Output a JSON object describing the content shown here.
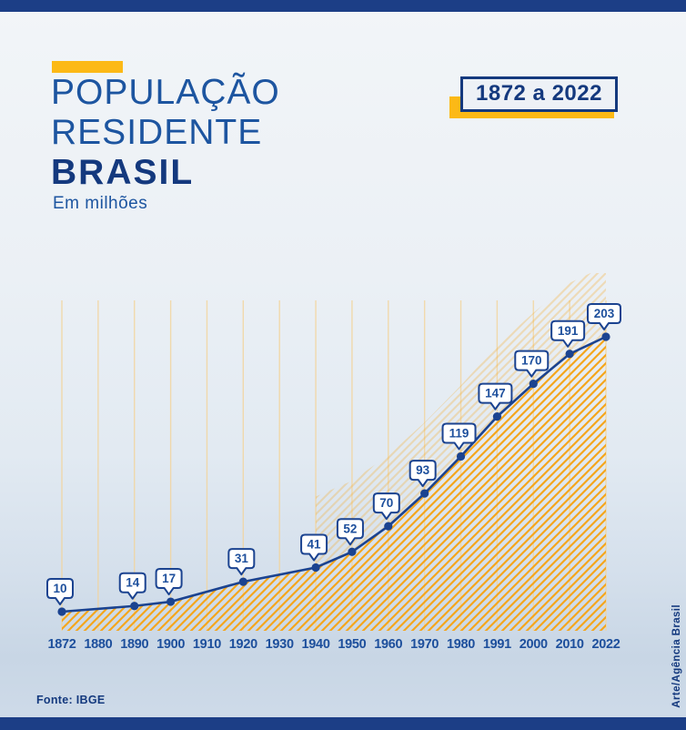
{
  "page": {
    "title_line1": "POPULAÇÃO",
    "title_line2": "RESIDENTE",
    "title_line3": "BRASIL",
    "subtitle": "Em milhões",
    "period_badge": "1872 a 2022",
    "source": "Fonte: IBGE",
    "credit": "Arte/Agência Brasil"
  },
  "colors": {
    "dark_blue": "#14397e",
    "blue": "#1d4f9c",
    "line_blue": "#1b4390",
    "accent_yellow": "#fcb916",
    "hatch_orange": "#f5a61c",
    "gridline_yellow": "#f3d49a",
    "bubble_fill": "#ffffff"
  },
  "chart_data": {
    "type": "line",
    "title": "População residente — Brasil, em milhões (1872 a 2022)",
    "unit": "milhões",
    "categories": [
      "1872",
      "1880",
      "1890",
      "1900",
      "1910",
      "1920",
      "1930",
      "1940",
      "1950",
      "1960",
      "1970",
      "1980",
      "1991",
      "2000",
      "2010",
      "2022"
    ],
    "values": [
      10,
      null,
      14,
      17,
      null,
      31,
      null,
      41,
      52,
      70,
      93,
      119,
      147,
      170,
      191,
      203
    ],
    "point_labels": true,
    "ylim": [
      0,
      210
    ],
    "grid": "vertical",
    "legend": "none"
  }
}
